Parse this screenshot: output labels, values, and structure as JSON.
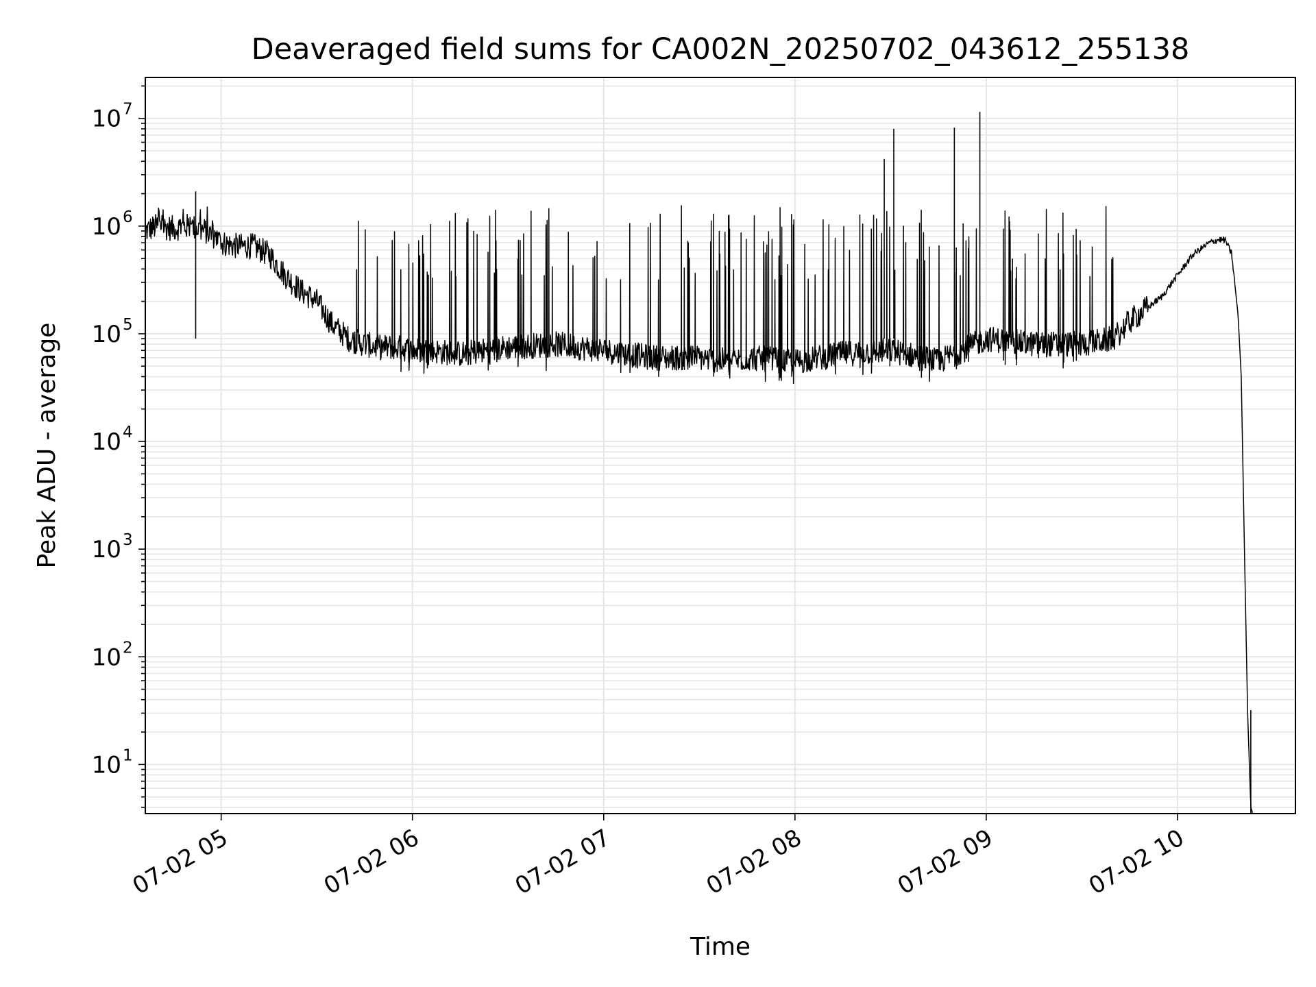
{
  "chart_data": {
    "type": "line",
    "title": "Deaveraged field sums for CA002N_20250702_043612_255138",
    "xlabel": "Time",
    "ylabel": "Peak ADU - average",
    "x_scale": "time",
    "y_scale": "log",
    "xlim": [
      "2025-07-02 04:36:12",
      "2025-07-02 10:37:00"
    ],
    "ylim": [
      3.5,
      24000000
    ],
    "x_ticks": [
      "07-02 05",
      "07-02 06",
      "07-02 07",
      "07-02 08",
      "07-02 09",
      "07-02 10"
    ],
    "y_ticks": [
      {
        "base": "10",
        "exp": "1",
        "value": 10
      },
      {
        "base": "10",
        "exp": "2",
        "value": 100
      },
      {
        "base": "10",
        "exp": "3",
        "value": 1000
      },
      {
        "base": "10",
        "exp": "4",
        "value": 10000
      },
      {
        "base": "10",
        "exp": "5",
        "value": 100000
      },
      {
        "base": "10",
        "exp": "6",
        "value": 1000000
      },
      {
        "base": "10",
        "exp": "7",
        "value": 10000000
      }
    ],
    "grid": true,
    "line_color": "#000000",
    "series": [
      {
        "x": [
          "04:36",
          "04:40",
          "04:45",
          "04:50",
          "04:55",
          "04:58",
          "05:00",
          "05:05",
          "05:10",
          "05:15",
          "05:20",
          "05:25",
          "05:30",
          "05:35",
          "05:40",
          "05:45",
          "05:50",
          "05:55",
          "06:00",
          "06:05",
          "06:15",
          "06:30",
          "06:45",
          "07:00",
          "07:15",
          "07:30",
          "07:40",
          "07:45",
          "08:00",
          "08:15",
          "08:30",
          "08:40",
          "08:45",
          "09:00",
          "09:15",
          "09:30",
          "09:40",
          "09:45",
          "09:55",
          "10:00",
          "10:05",
          "10:10",
          "10:13",
          "10:15",
          "10:17",
          "10:19",
          "10:20",
          "10:21",
          "10:22",
          "10:23",
          "10:23.5"
        ],
        "y": [
          900000,
          1000000,
          950000,
          1000000,
          900000,
          800000,
          700000,
          650000,
          650000,
          550000,
          350000,
          250000,
          200000,
          120000,
          90000,
          80000,
          75000,
          75000,
          70000,
          70000,
          65000,
          75000,
          80000,
          70000,
          60000,
          60000,
          55000,
          60000,
          55000,
          65000,
          70000,
          60000,
          55000,
          90000,
          80000,
          80000,
          90000,
          130000,
          220000,
          350000,
          550000,
          700000,
          750000,
          740000,
          550000,
          150000,
          40000,
          1000,
          30,
          4,
          3.6
        ]
      }
    ],
    "spikes": [
      {
        "x": "08:28",
        "y": 4200000
      },
      {
        "x": "08:31",
        "y": 8000000
      },
      {
        "x": "08:50",
        "y": 8200000
      },
      {
        "x": "08:58",
        "y": 11500000
      },
      {
        "x": "04:52",
        "y": 2100000
      },
      {
        "x": "10:23",
        "y": 32
      }
    ]
  }
}
